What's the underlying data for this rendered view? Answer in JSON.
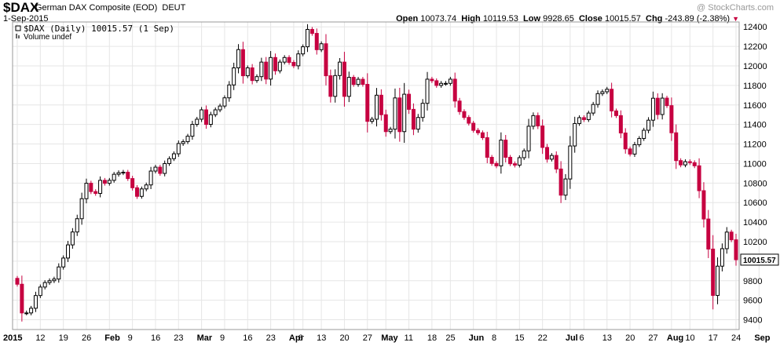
{
  "header": {
    "symbol": "$DAX",
    "name": "German DAX Composite (EOD)",
    "exchange": "DEUT",
    "date": "1-Sep-2015",
    "credit": "@ StockCharts.com",
    "open_label": "Open",
    "open": "10073.74",
    "high_label": "High",
    "high": "10119.53",
    "low_label": "Low",
    "low": "9928.65",
    "close_label": "Close",
    "close": "10015.57",
    "chg_label": "Chg",
    "chg": "-243.89 (-2.38%)"
  },
  "legend": {
    "series": "$DAX (Daily) 10015.57 (1 Sep)",
    "volume": "Volume undef"
  },
  "colors": {
    "up": "#ffffff",
    "down": "#c60040",
    "outline": "#000000",
    "grid": "#e6e6e6",
    "last_price_box": "#ffffff"
  },
  "chart_data": {
    "type": "candlestick",
    "y_range": [
      9300,
      12450
    ],
    "y_ticks": [
      9400,
      9600,
      9800,
      10000,
      10200,
      10400,
      10600,
      10800,
      11000,
      11200,
      11400,
      11600,
      11800,
      12000,
      12200,
      12400
    ],
    "y_tick_labels": [
      "9400",
      "9600",
      "9800",
      "10000",
      "10200",
      "10400",
      "10600",
      "10800",
      "11000",
      "11200",
      "11400",
      "11600",
      "11800",
      "12000",
      "12200",
      "12400"
    ],
    "last_price_label": "10015.57",
    "last_price": 10015.57,
    "x_ticks": [
      {
        "index": 0,
        "label": "2015",
        "bold": true
      },
      {
        "index": 5,
        "label": "12",
        "bold": false
      },
      {
        "index": 10,
        "label": "19",
        "bold": false
      },
      {
        "index": 15,
        "label": "26",
        "bold": false
      },
      {
        "index": 20,
        "label": "Feb",
        "bold": true
      },
      {
        "index": 25,
        "label": "9",
        "bold": false
      },
      {
        "index": 30,
        "label": "16",
        "bold": false
      },
      {
        "index": 35,
        "label": "23",
        "bold": false
      },
      {
        "index": 40,
        "label": "Mar",
        "bold": true
      },
      {
        "index": 45,
        "label": "9",
        "bold": false
      },
      {
        "index": 50,
        "label": "16",
        "bold": false
      },
      {
        "index": 55,
        "label": "23",
        "bold": false
      },
      {
        "index": 60,
        "label": "Apr",
        "bold": true
      },
      {
        "index": 62,
        "label": "6",
        "bold": false
      },
      {
        "index": 66,
        "label": "13",
        "bold": false
      },
      {
        "index": 71,
        "label": "20",
        "bold": false
      },
      {
        "index": 76,
        "label": "27",
        "bold": false
      },
      {
        "index": 80,
        "label": "May",
        "bold": true
      },
      {
        "index": 85,
        "label": "11",
        "bold": false
      },
      {
        "index": 90,
        "label": "18",
        "bold": false
      },
      {
        "index": 94,
        "label": "25",
        "bold": false
      },
      {
        "index": 99,
        "label": "Jun",
        "bold": true
      },
      {
        "index": 104,
        "label": "8",
        "bold": false
      },
      {
        "index": 109,
        "label": "15",
        "bold": false
      },
      {
        "index": 114,
        "label": "22",
        "bold": false
      },
      {
        "index": 120,
        "label": "Jul",
        "bold": true
      },
      {
        "index": 123,
        "label": "6",
        "bold": false
      },
      {
        "index": 128,
        "label": "13",
        "bold": false
      },
      {
        "index": 133,
        "label": "20",
        "bold": false
      },
      {
        "index": 138,
        "label": "27",
        "bold": false
      },
      {
        "index": 142,
        "label": "Aug",
        "bold": true
      },
      {
        "index": 146,
        "label": "10",
        "bold": false
      },
      {
        "index": 151,
        "label": "17",
        "bold": false
      },
      {
        "index": 156,
        "label": "24",
        "bold": false
      },
      {
        "index": 161,
        "label": "Sep",
        "bold": true
      }
    ],
    "close": [
      9764,
      9470,
      9470,
      9518,
      9648,
      9735,
      9781,
      9800,
      9817,
      9941,
      10032,
      10167,
      10299,
      10435,
      10640,
      10798,
      10713,
      10694,
      10828,
      10798,
      10828,
      10890,
      10906,
      10911,
      10846,
      10752,
      10664,
      10740,
      10781,
      10923,
      10963,
      10899,
      11000,
      11050,
      11100,
      11205,
      11224,
      11280,
      11401,
      11454,
      11550,
      11401,
      11500,
      11550,
      11589,
      11673,
      11805,
      11980,
      12167,
      11899,
      11980,
      11850,
      11890,
      12039,
      11865,
      12086,
      11950,
      12039,
      12086,
      12036,
      12001,
      12123,
      12196,
      12374,
      12333,
      12166,
      12227,
      11899,
      11688,
      11901,
      12039,
      11688,
      11883,
      11810,
      11863,
      11811,
      11432,
      11454,
      11700,
      11500,
      11327,
      11352,
      11672,
      11327,
      11710,
      11555,
      11352,
      11472,
      11617,
      11864,
      11848,
      11800,
      11821,
      11821,
      11864,
      11640,
      11532,
      11472,
      11413,
      11340,
      11315,
      11265,
      11064,
      11001,
      10976,
      11240,
      11064,
      10998,
      10984,
      11060,
      11130,
      11382,
      11491,
      11385,
      11165,
      11045,
      11083,
      10944,
      10676,
      10842,
      11180,
      11410,
      11470,
      11450,
      11517,
      11605,
      11716,
      11735,
      11761,
      11539,
      11491,
      11313,
      11150,
      11097,
      11193,
      11257,
      11341,
      11444,
      11669,
      11502,
      11670,
      11593,
      11315,
      11030,
      10986,
      11019,
      11009,
      10977,
      10722,
      10432,
      10124,
      9649,
      9949,
      10128,
      10298,
      10219,
      10015
    ]
  }
}
